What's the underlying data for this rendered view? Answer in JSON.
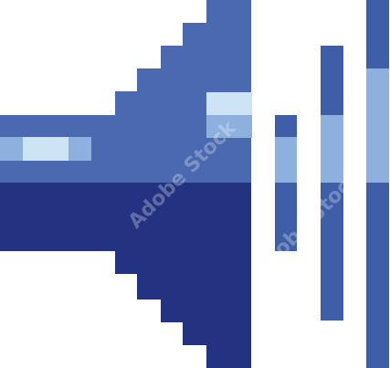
{
  "icon": {
    "name": "speaker-volume-icon",
    "style": "pixel-art",
    "colors": {
      "dark_navy": "#233381",
      "mid_blue": "#3e5ea8",
      "upper_blue": "#4a69b0",
      "light_blue": "#8eb0de",
      "highlight": "#cde3f6"
    }
  },
  "watermark": {
    "text": "Adobe Stock"
  }
}
